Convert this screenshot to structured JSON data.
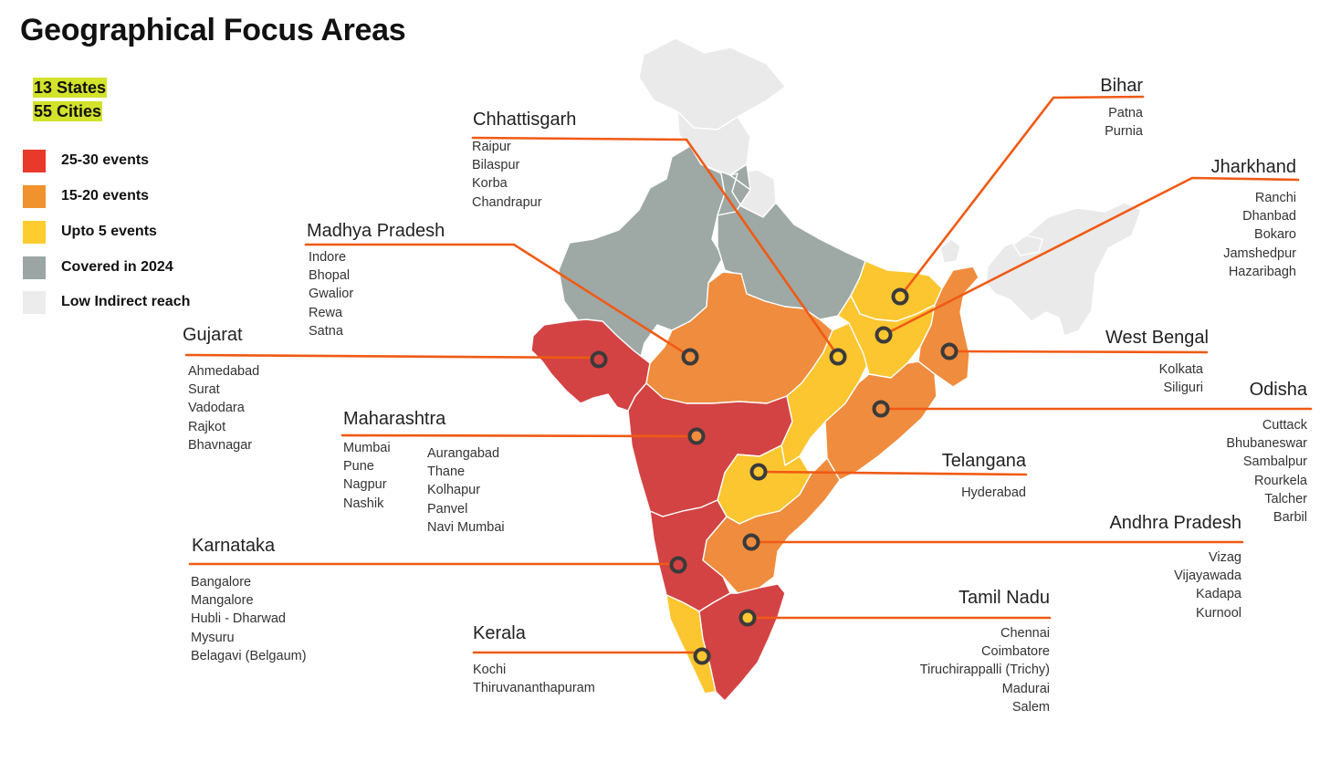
{
  "title": "Geographical Focus Areas",
  "summary": {
    "states": "13 States",
    "cities": "55 Cities"
  },
  "colors": {
    "high": "#d34343",
    "mid": "#ef8c3e",
    "low": "#fcc631",
    "covered": "#9ea8a5",
    "indirect": "#eaeaea",
    "line": "#f05a14",
    "highlight": "#d3e22b"
  },
  "legend": [
    {
      "label": "25-30 events",
      "color": "#e8392a"
    },
    {
      "label": "15-20 events",
      "color": "#f0922e"
    },
    {
      "label": "Upto 5 events",
      "color": "#fdcd2f"
    },
    {
      "label": "Covered in 2024",
      "color": "#9ba6a4"
    },
    {
      "label": "Low Indirect reach",
      "color": "#ececec"
    }
  ],
  "states": {
    "chhattisgarh": {
      "name": "Chhattisgarh",
      "cities": [
        "Raipur",
        "Bilaspur",
        "Korba",
        "Chandrapur"
      ]
    },
    "madhya_pradesh": {
      "name": "Madhya Pradesh",
      "cities": [
        "Indore",
        "Bhopal",
        "Gwalior",
        "Rewa",
        "Satna"
      ]
    },
    "gujarat": {
      "name": "Gujarat",
      "cities": [
        "Ahmedabad",
        "Surat",
        "Vadodara",
        "Rajkot",
        "Bhavnagar"
      ]
    },
    "maharashtra": {
      "name": "Maharashtra",
      "cities": [
        "Mumbai",
        "Pune",
        "Nagpur",
        "Nashik"
      ],
      "cities_col2": [
        "Aurangabad",
        "Thane",
        "Kolhapur",
        "Panvel",
        "Navi Mumbai"
      ]
    },
    "karnataka": {
      "name": "Karnataka",
      "cities": [
        "Bangalore",
        "Mangalore",
        "Hubli - Dharwad",
        "Mysuru",
        "Belagavi (Belgaum)"
      ]
    },
    "kerala": {
      "name": "Kerala",
      "cities": [
        "Kochi",
        "Thiruvananthapuram"
      ]
    },
    "bihar": {
      "name": "Bihar",
      "cities": [
        "Patna",
        "Purnia"
      ]
    },
    "jharkhand": {
      "name": "Jharkhand",
      "cities": [
        "Ranchi",
        "Dhanbad",
        "Bokaro",
        "Jamshedpur",
        "Hazaribagh"
      ]
    },
    "west_bengal": {
      "name": "West Bengal",
      "cities": [
        "Kolkata",
        "Siliguri"
      ]
    },
    "odisha": {
      "name": "Odisha",
      "cities": [
        "Cuttack",
        "Bhubaneswar",
        "Sambalpur",
        "Rourkela",
        "Talcher",
        "Barbil"
      ]
    },
    "telangana": {
      "name": "Telangana",
      "cities": [
        "Hyderabad"
      ]
    },
    "andhra_pradesh": {
      "name": "Andhra Pradesh",
      "cities": [
        "Vizag",
        "Vijayawada",
        "Kadapa",
        "Kurnool"
      ]
    },
    "tamil_nadu": {
      "name": "Tamil Nadu",
      "cities": [
        "Chennai",
        "Coimbatore",
        "Tiruchirappalli (Trichy)",
        "Madurai",
        "Salem"
      ]
    }
  }
}
